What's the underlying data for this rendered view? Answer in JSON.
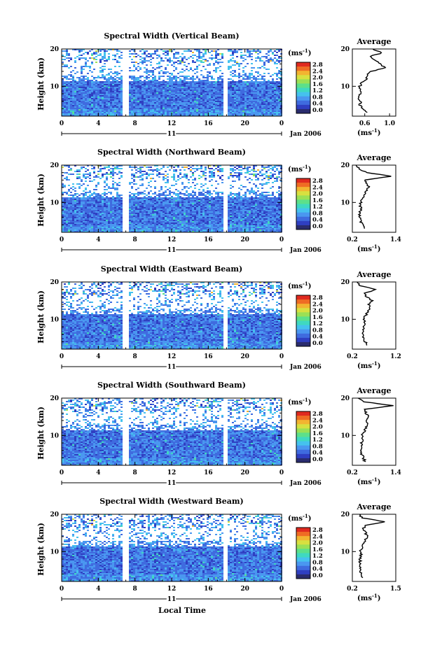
{
  "colors": {
    "scale": [
      "#2a2c6e",
      "#2f3fc2",
      "#3f6bdf",
      "#4a97f0",
      "#45c2ee",
      "#3fd9c0",
      "#5ce08a",
      "#9be055",
      "#d8e040",
      "#f2b431",
      "#ef6c24",
      "#e02a1f"
    ],
    "background": "#ffffff"
  },
  "common": {
    "date_label": "Jan 2006",
    "day_label": "11",
    "x_axis_title": "Local Time",
    "unit_label": "(ms",
    "unit_sup": "-1",
    "colorbar_ticks": [
      "0.0",
      "0.4",
      "0.8",
      "1.2",
      "1.6",
      "2.0",
      "2.4",
      "2.8"
    ],
    "y_axis_title": "Height (km)",
    "avg_title": "Average"
  },
  "chart_data": [
    {
      "type": "heatmap",
      "title": "Spectral Width (Vertical Beam)",
      "ylabel": "Height (km)",
      "x_ticks": [
        "0",
        "4",
        "8",
        "12",
        "16",
        "20",
        "0"
      ],
      "x_range": [
        0,
        24
      ],
      "y_ticks": [
        "10",
        "20"
      ],
      "y_range": [
        2,
        20
      ],
      "colorbar_range": [
        0.0,
        2.8
      ],
      "data_gaps_hours": [
        [
          6.5,
          7.2
        ],
        [
          17.5,
          17.9
        ]
      ],
      "profile": {
        "title": "Average",
        "x_ticks": [
          "0.6",
          "1.0"
        ],
        "x_range": [
          0.4,
          1.1
        ],
        "xlabel": "(ms",
        "xlabel_sup": "-1",
        "heights": [
          3,
          4,
          5,
          6,
          7,
          8,
          9,
          10,
          11,
          12,
          13,
          14,
          15,
          16,
          17,
          18,
          19,
          20
        ],
        "values": [
          0.62,
          0.56,
          0.52,
          0.53,
          0.5,
          0.52,
          0.54,
          0.52,
          0.56,
          0.62,
          0.64,
          0.7,
          0.92,
          0.84,
          0.78,
          0.68,
          0.88,
          0.72
        ]
      }
    },
    {
      "type": "heatmap",
      "title": "Spectral Width (Northward Beam)",
      "ylabel": "Height (km)",
      "x_ticks": [
        "0",
        "4",
        "8",
        "12",
        "16",
        "20",
        "0"
      ],
      "x_range": [
        0,
        24
      ],
      "y_ticks": [
        "10",
        "20"
      ],
      "y_range": [
        2,
        20
      ],
      "colorbar_range": [
        0.0,
        2.8
      ],
      "data_gaps_hours": [
        [
          6.6,
          7.3
        ],
        [
          17.6,
          18.1
        ]
      ],
      "profile": {
        "title": "Average",
        "x_ticks": [
          "0.2",
          "1.4"
        ],
        "x_range": [
          0.2,
          1.4
        ],
        "xlabel": "(ms",
        "xlabel_sup": "-1",
        "heights": [
          3,
          4,
          5,
          6,
          7,
          8,
          9,
          10,
          11,
          12,
          13,
          14,
          15,
          16,
          17,
          18,
          19,
          20
        ],
        "values": [
          0.55,
          0.48,
          0.42,
          0.42,
          0.4,
          0.44,
          0.42,
          0.44,
          0.46,
          0.52,
          0.58,
          0.66,
          0.62,
          0.55,
          1.28,
          0.62,
          0.38,
          0.3
        ]
      }
    },
    {
      "type": "heatmap",
      "title": "Spectral Width (Eastward Beam)",
      "ylabel": "Height (km)",
      "x_ticks": [
        "0",
        "4",
        "8",
        "12",
        "16",
        "20",
        "0"
      ],
      "x_range": [
        0,
        24
      ],
      "y_ticks": [
        "10",
        "20"
      ],
      "y_range": [
        2,
        20
      ],
      "colorbar_range": [
        0.0,
        2.8
      ],
      "data_gaps_hours": [
        [
          6.6,
          7.3
        ],
        [
          17.6,
          18.0
        ]
      ],
      "profile": {
        "title": "Average",
        "x_ticks": [
          "0.2",
          "1.2"
        ],
        "x_range": [
          0.2,
          1.2
        ],
        "xlabel": "(ms",
        "xlabel_sup": "-1",
        "heights": [
          3,
          4,
          5,
          6,
          7,
          8,
          9,
          10,
          11,
          12,
          13,
          14,
          15,
          16,
          17,
          18,
          19,
          20
        ],
        "values": [
          0.55,
          0.5,
          0.46,
          0.44,
          0.46,
          0.44,
          0.48,
          0.46,
          0.5,
          0.56,
          0.6,
          0.58,
          0.66,
          0.52,
          0.48,
          0.74,
          0.4,
          0.3
        ]
      }
    },
    {
      "type": "heatmap",
      "title": "Spectral Width (Southward Beam)",
      "ylabel": "Height (km)",
      "x_ticks": [
        "0",
        "4",
        "8",
        "12",
        "16",
        "20",
        "0"
      ],
      "x_range": [
        0,
        24
      ],
      "y_ticks": [
        "10",
        "20"
      ],
      "y_range": [
        2,
        20
      ],
      "colorbar_range": [
        0.0,
        2.8
      ],
      "data_gaps_hours": [
        [
          6.5,
          7.2
        ],
        [
          17.6,
          18.0
        ]
      ],
      "profile": {
        "title": "Average",
        "x_ticks": [
          "0.2",
          "1.4"
        ],
        "x_range": [
          0.2,
          1.4
        ],
        "xlabel": "(ms",
        "xlabel_sup": "-1",
        "heights": [
          3,
          4,
          5,
          6,
          7,
          8,
          9,
          10,
          11,
          12,
          13,
          14,
          15,
          16,
          17,
          18,
          19,
          20
        ],
        "values": [
          0.55,
          0.5,
          0.46,
          0.46,
          0.48,
          0.44,
          0.5,
          0.46,
          0.52,
          0.58,
          0.62,
          0.56,
          0.64,
          0.58,
          0.56,
          1.3,
          0.55,
          0.38
        ]
      }
    },
    {
      "type": "heatmap",
      "title": "Spectral Width (Westward Beam)",
      "ylabel": "Height (km)",
      "x_ticks": [
        "0",
        "4",
        "8",
        "12",
        "16",
        "20",
        "0"
      ],
      "x_range": [
        0,
        24
      ],
      "y_ticks": [
        "10",
        "20"
      ],
      "y_range": [
        2,
        20
      ],
      "colorbar_range": [
        0.0,
        2.8
      ],
      "data_gaps_hours": [
        [
          6.5,
          7.2
        ],
        [
          17.5,
          17.9
        ]
      ],
      "profile": {
        "title": "Average",
        "x_ticks": [
          "0.2",
          "1.5"
        ],
        "x_range": [
          0.2,
          1.5
        ],
        "xlabel": "(ms",
        "xlabel_sup": "-1",
        "heights": [
          3,
          4,
          5,
          6,
          7,
          8,
          9,
          10,
          11,
          12,
          13,
          14,
          15,
          16,
          17,
          18,
          19,
          20
        ],
        "values": [
          0.52,
          0.48,
          0.44,
          0.44,
          0.42,
          0.44,
          0.46,
          0.44,
          0.48,
          0.54,
          0.58,
          0.64,
          0.6,
          0.52,
          0.6,
          1.2,
          0.5,
          0.4
        ]
      }
    }
  ]
}
